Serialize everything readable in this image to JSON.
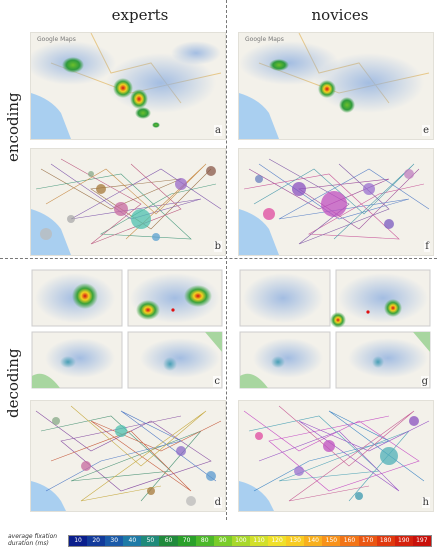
{
  "column_titles": {
    "left": "experts",
    "right": "novices"
  },
  "row_titles": {
    "top": "encoding",
    "bottom": "decoding"
  },
  "map_credit": "Google Maps",
  "panel_labels": {
    "a": "a",
    "b": "b",
    "c": "c",
    "d": "d",
    "e": "e",
    "f": "f",
    "g": "g",
    "h": "h"
  },
  "legend": {
    "caption": "average fixation duration (ms)",
    "ticks": [
      "10",
      "20",
      "30",
      "40",
      "50",
      "60",
      "70",
      "80",
      "90",
      "100",
      "110",
      "120",
      "130",
      "140",
      "150",
      "160",
      "170",
      "180",
      "190",
      "197"
    ],
    "colors": [
      "#0a1e8c",
      "#123a9a",
      "#1a5aa8",
      "#1e7aa6",
      "#1f8a7a",
      "#208a3c",
      "#2aa02a",
      "#4cb82a",
      "#7acc2a",
      "#a8d82a",
      "#d2e02a",
      "#f0e02a",
      "#f8cc22",
      "#f8b01e",
      "#f8921a",
      "#f27416",
      "#ea5612",
      "#e0380e",
      "#d4200c",
      "#c8100a"
    ]
  }
}
